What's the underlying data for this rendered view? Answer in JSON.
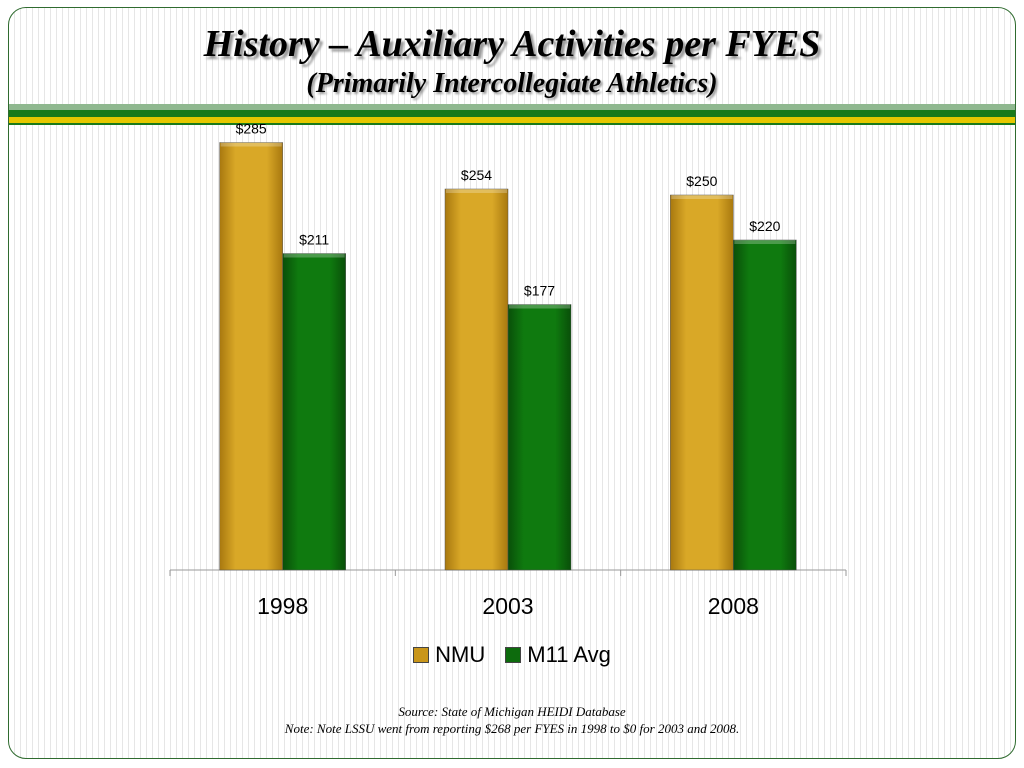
{
  "slide": {
    "title": "History – Auxiliary Activities per FYES",
    "subtitle": "(Primarily Intercollegiate Athletics)",
    "source": "Source:  State of Michigan HEIDI Database",
    "note": "Note:  Note LSSU went from reporting $268 per FYES in 1998 to $0 for 2003 and 2008."
  },
  "chart_data": {
    "type": "bar",
    "categories": [
      "1998",
      "2003",
      "2008"
    ],
    "series": [
      {
        "name": "NMU",
        "values": [
          285,
          254,
          250
        ],
        "labels": [
          "$285",
          "$254",
          "$250"
        ],
        "color": "#c9961a"
      },
      {
        "name": "M11 Avg",
        "values": [
          211,
          177,
          220
        ],
        "labels": [
          "$211",
          "$177",
          "$220"
        ],
        "color": "#0d6b0d"
      }
    ],
    "ylim": [
      0,
      300
    ],
    "grid": false,
    "legend_position": "bottom"
  }
}
